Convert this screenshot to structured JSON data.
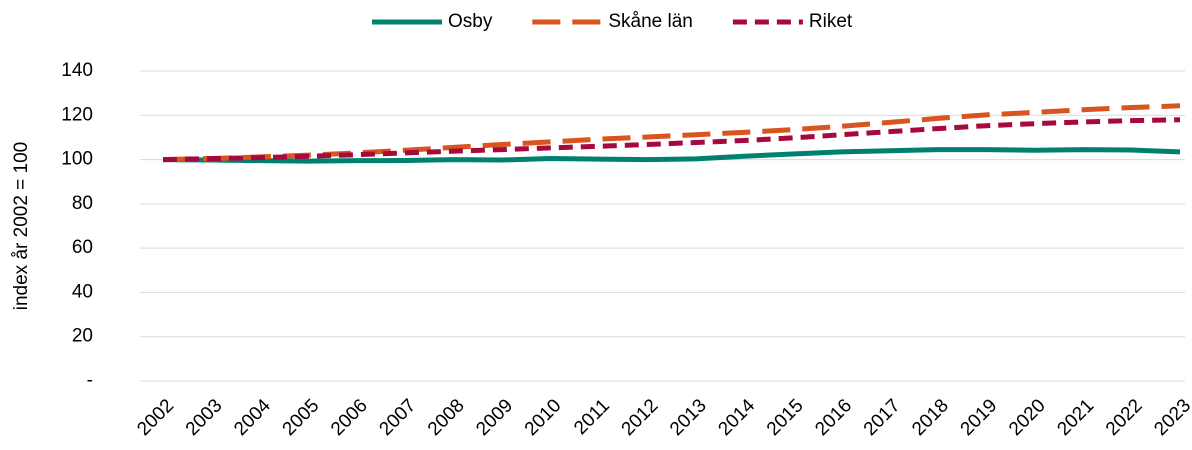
{
  "chart_data": {
    "type": "line",
    "y_label": "index år 2002 = 100",
    "categories": [
      "2002",
      "2003",
      "2004",
      "2005",
      "2006",
      "2007",
      "2008",
      "2009",
      "2010",
      "2011",
      "2012",
      "2013",
      "2014",
      "2015",
      "2016",
      "2017",
      "2018",
      "2019",
      "2020",
      "2021",
      "2022",
      "2023"
    ],
    "series": [
      {
        "name": "Osby",
        "color": "#00806e",
        "dash": "none",
        "values": [
          100,
          99.8,
          99.5,
          99.3,
          99.5,
          99.6,
          100,
          99.8,
          100.5,
          100.2,
          100,
          100.3,
          101.5,
          102.5,
          103.5,
          104,
          104.5,
          104.5,
          104.2,
          104.5,
          104.3,
          103.5
        ]
      },
      {
        "name": "Skåne län",
        "color": "#d9541e",
        "dash": "28 12",
        "values": [
          100,
          100.5,
          101.2,
          102,
          103,
          104.2,
          105.5,
          106.8,
          108,
          109.2,
          110.2,
          111.2,
          112.3,
          113.5,
          115,
          116.8,
          118.6,
          120.2,
          121.3,
          122.5,
          123.5,
          124.3
        ]
      },
      {
        "name": "Riket",
        "color": "#a6093d",
        "dash": "14 8",
        "values": [
          100,
          100.4,
          100.9,
          101.5,
          102.2,
          103,
          103.8,
          104.5,
          105.3,
          106,
          106.8,
          107.7,
          108.6,
          109.8,
          111.2,
          112.6,
          114,
          115.3,
          116.2,
          117,
          117.6,
          118
        ]
      }
    ],
    "ylim": [
      0,
      140
    ],
    "yticks": [
      {
        "value": 0,
        "label": "-"
      },
      20,
      40,
      60,
      80,
      100,
      120,
      140
    ],
    "grid": true,
    "legend": "top"
  }
}
